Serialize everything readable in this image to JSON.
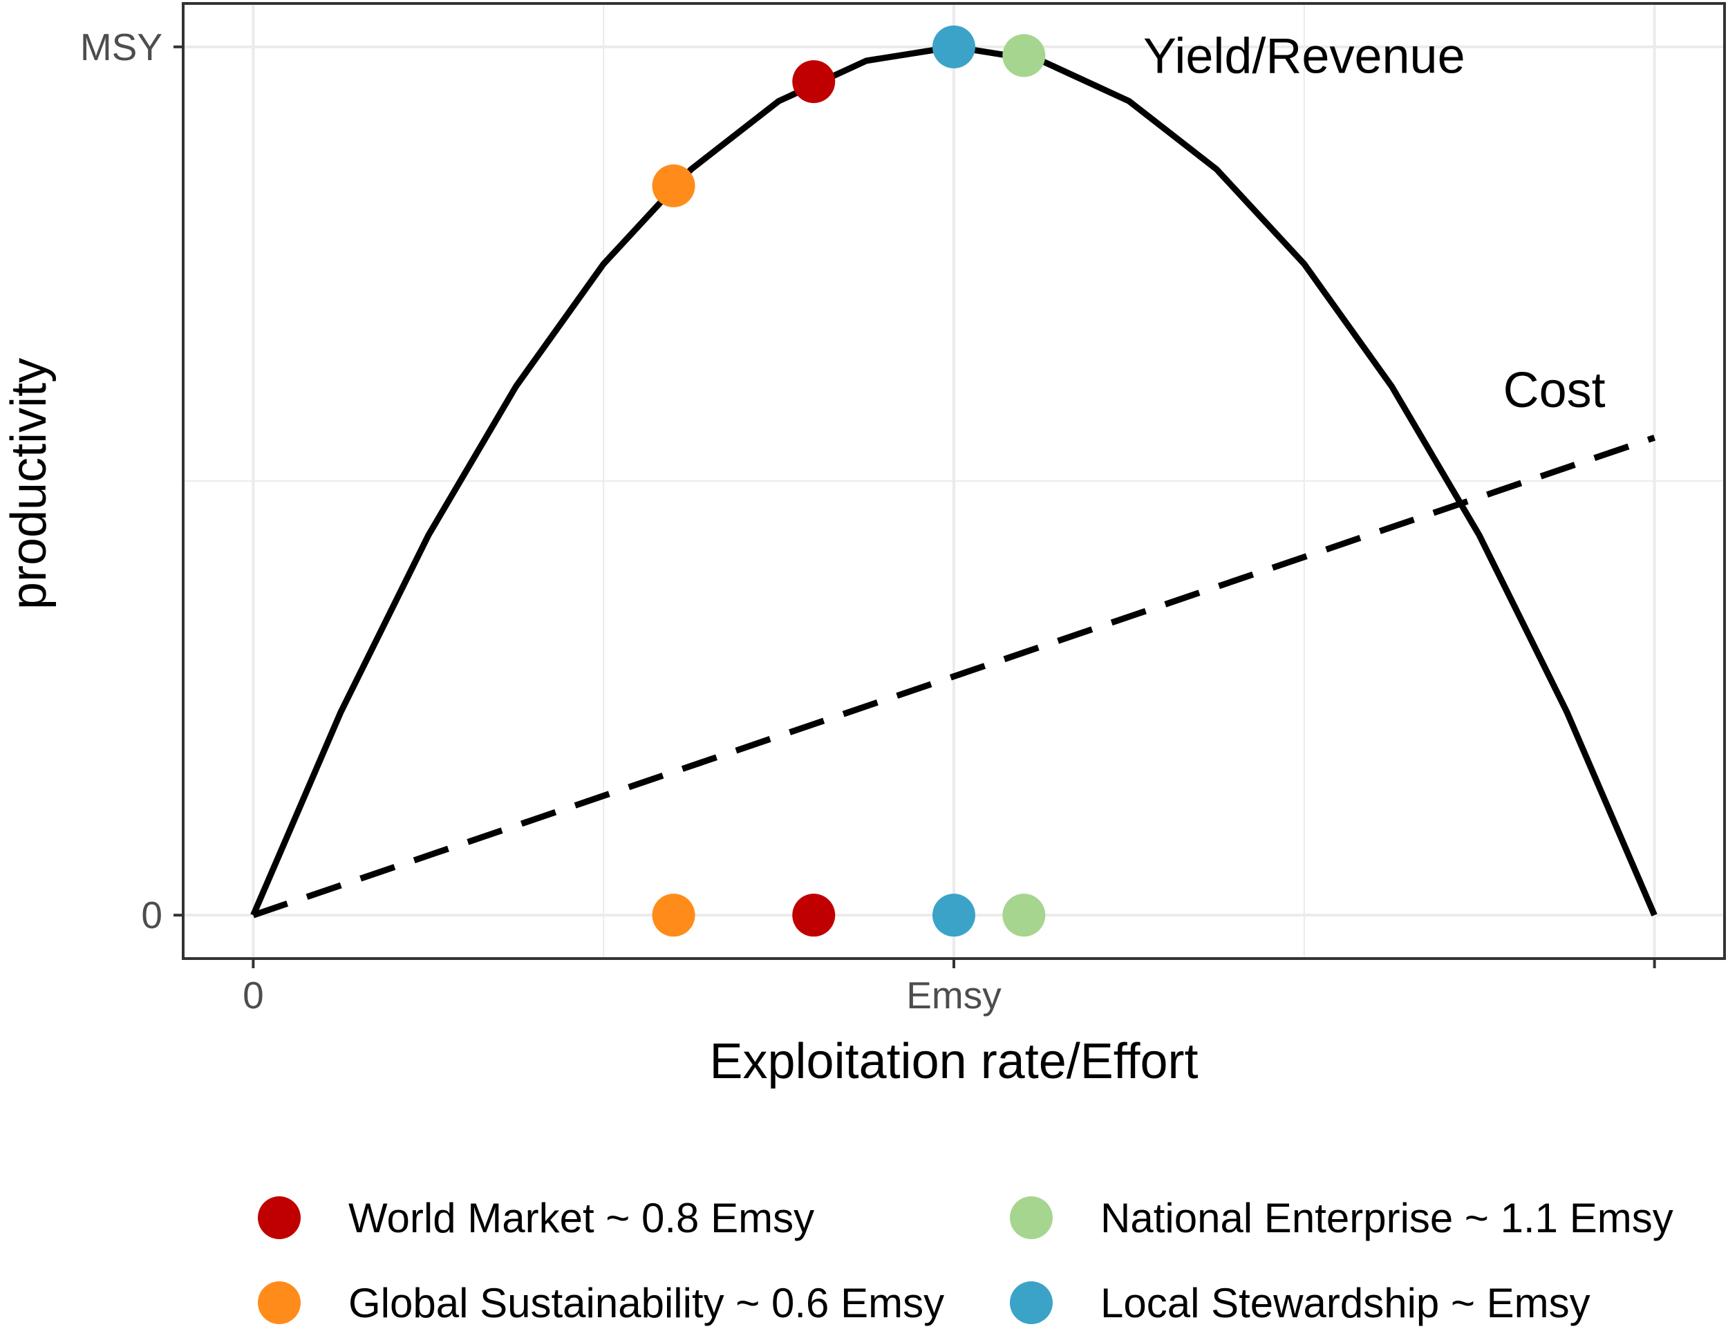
{
  "chart_data": {
    "type": "line",
    "xlabel": "Exploitation rate/Effort",
    "ylabel": "productivity",
    "xlim": [
      -0.1,
      2.1
    ],
    "ylim": [
      -0.05,
      1.05
    ],
    "x_ticks": [
      {
        "value": 0,
        "label": "0"
      },
      {
        "value": 1,
        "label": "Emsy"
      },
      {
        "value": 2,
        "label": ""
      }
    ],
    "y_ticks": [
      {
        "value": 0,
        "label": "0"
      },
      {
        "value": 1,
        "label": "MSY"
      }
    ],
    "grid": true,
    "series": [
      {
        "name": "Yield/Revenue",
        "style": "solid",
        "color": "#000000",
        "x": [
          0,
          0.125,
          0.25,
          0.375,
          0.5,
          0.625,
          0.75,
          0.875,
          1.0,
          1.125,
          1.25,
          1.375,
          1.5,
          1.625,
          1.75,
          1.875,
          2.0
        ],
        "y": [
          0,
          0.234,
          0.4375,
          0.609,
          0.75,
          0.859,
          0.9375,
          0.984,
          1.0,
          0.984,
          0.9375,
          0.859,
          0.75,
          0.609,
          0.4375,
          0.234,
          0
        ]
      },
      {
        "name": "Cost",
        "style": "dashed",
        "color": "#000000",
        "x": [
          0,
          2.0
        ],
        "y": [
          0,
          0.55
        ]
      }
    ],
    "points": [
      {
        "name": "World Market ~ 0.8 Emsy",
        "x": 0.8,
        "y": 0.96,
        "color": "#c00000"
      },
      {
        "name": "Global Sustainability ~ 0.6 Emsy",
        "x": 0.6,
        "y": 0.84,
        "color": "#ff8c1a"
      },
      {
        "name": "Local Stewardship ~ Emsy",
        "x": 1.0,
        "y": 1.0,
        "color": "#3ba3c8"
      },
      {
        "name": "National Enterprise ~ 1.1 Emsy",
        "x": 1.1,
        "y": 0.99,
        "color": "#a6d58f"
      }
    ],
    "rug_points_y": 0,
    "annotations": [
      {
        "text": "Yield/Revenue",
        "x": 1.5,
        "y": 0.97,
        "anchor": "middle"
      },
      {
        "text": "Cost",
        "x": 1.93,
        "y": 0.585,
        "anchor": "end"
      }
    ],
    "legend": {
      "placement": "bottom",
      "columns": 2,
      "items": [
        {
          "label": "World Market ~ 0.8 Emsy",
          "color": "#c00000"
        },
        {
          "label": "National Enterprise ~ 1.1 Emsy",
          "color": "#a6d58f"
        },
        {
          "label": "Global Sustainability ~ 0.6 Emsy",
          "color": "#ff8c1a"
        },
        {
          "label": "Local Stewardship ~ Emsy",
          "color": "#3ba3c8"
        }
      ]
    }
  }
}
